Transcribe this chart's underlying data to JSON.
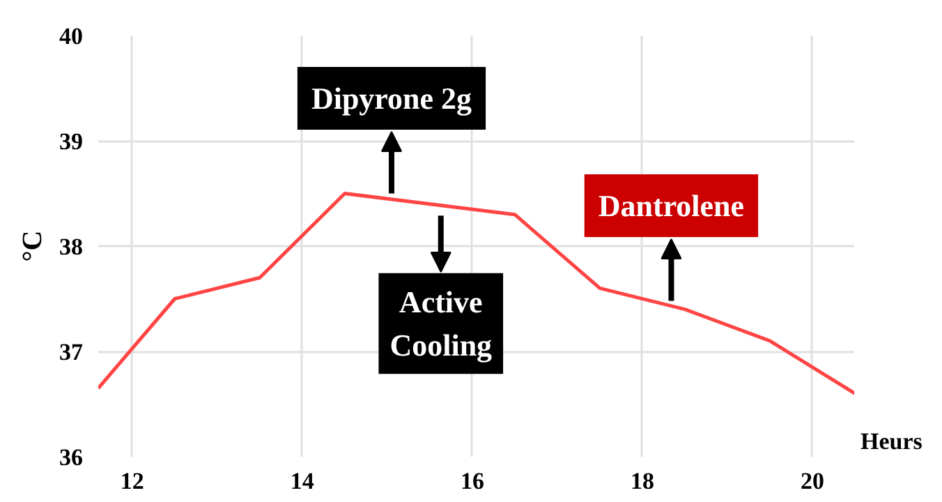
{
  "chart_data": {
    "type": "line",
    "xlabel": "Heurs",
    "ylabel": "°C",
    "x": [
      11.6,
      12.5,
      13.5,
      14.5,
      16.5,
      17.5,
      18.5,
      19.5,
      20.5
    ],
    "series": [
      {
        "color": "#ff4444",
        "values": [
          36.65,
          37.5,
          37.7,
          38.5,
          38.3,
          37.6,
          37.4,
          37.1,
          36.6
        ]
      }
    ],
    "xlim": [
      11.6,
      20.5
    ],
    "ylim": [
      36,
      40
    ],
    "xticks": [
      12,
      14,
      16,
      18,
      20
    ],
    "yticks": [
      36,
      37,
      38,
      39,
      40
    ],
    "grid": true,
    "marker": "none",
    "line_style": "solid",
    "annotations": [
      {
        "text": "Dipyrone 2g",
        "x": 15.05,
        "y": 38.45
      },
      {
        "text": "Active\nCooling",
        "x": 15.63,
        "y": 38.39
      },
      {
        "text": "Dantrolene",
        "x": 18.34,
        "y": 37.43
      }
    ]
  }
}
